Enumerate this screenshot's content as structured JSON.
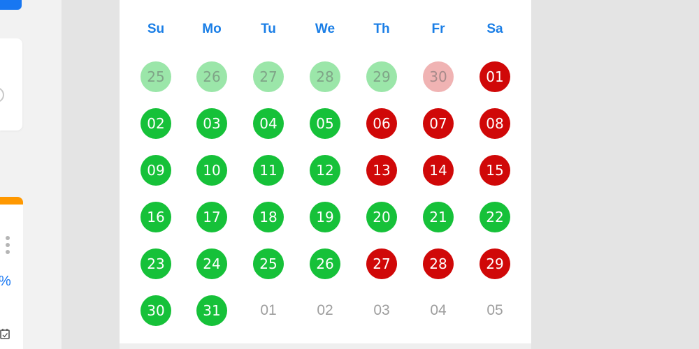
{
  "left_panel": {
    "percent_text": "%"
  },
  "calendar": {
    "weekdays": [
      "Su",
      "Mo",
      "Tu",
      "We",
      "Th",
      "Fr",
      "Sa"
    ],
    "weeks": [
      [
        {
          "label": "25",
          "status": "light-green"
        },
        {
          "label": "26",
          "status": "light-green"
        },
        {
          "label": "27",
          "status": "light-green"
        },
        {
          "label": "28",
          "status": "light-green"
        },
        {
          "label": "29",
          "status": "light-green"
        },
        {
          "label": "30",
          "status": "light-red"
        },
        {
          "label": "01",
          "status": "red"
        }
      ],
      [
        {
          "label": "02",
          "status": "green"
        },
        {
          "label": "03",
          "status": "green"
        },
        {
          "label": "04",
          "status": "green"
        },
        {
          "label": "05",
          "status": "green"
        },
        {
          "label": "06",
          "status": "red"
        },
        {
          "label": "07",
          "status": "red"
        },
        {
          "label": "08",
          "status": "red"
        }
      ],
      [
        {
          "label": "09",
          "status": "green"
        },
        {
          "label": "10",
          "status": "green"
        },
        {
          "label": "11",
          "status": "green"
        },
        {
          "label": "12",
          "status": "green"
        },
        {
          "label": "13",
          "status": "red"
        },
        {
          "label": "14",
          "status": "red"
        },
        {
          "label": "15",
          "status": "red"
        }
      ],
      [
        {
          "label": "16",
          "status": "green"
        },
        {
          "label": "17",
          "status": "green"
        },
        {
          "label": "18",
          "status": "green"
        },
        {
          "label": "19",
          "status": "green"
        },
        {
          "label": "20",
          "status": "green"
        },
        {
          "label": "21",
          "status": "green"
        },
        {
          "label": "22",
          "status": "green"
        }
      ],
      [
        {
          "label": "23",
          "status": "green"
        },
        {
          "label": "24",
          "status": "green"
        },
        {
          "label": "25",
          "status": "green"
        },
        {
          "label": "26",
          "status": "green"
        },
        {
          "label": "27",
          "status": "red"
        },
        {
          "label": "28",
          "status": "red"
        },
        {
          "label": "29",
          "status": "red"
        }
      ],
      [
        {
          "label": "30",
          "status": "green"
        },
        {
          "label": "31",
          "status": "green"
        },
        {
          "label": "01",
          "status": "next"
        },
        {
          "label": "02",
          "status": "next"
        },
        {
          "label": "03",
          "status": "next"
        },
        {
          "label": "04",
          "status": "next"
        },
        {
          "label": "05",
          "status": "next"
        }
      ]
    ]
  },
  "colors": {
    "available": "#16c139",
    "unavailable": "#d00808",
    "weekday_header": "#1a7ee6",
    "accent_orange": "#ff9800",
    "primary_blue": "#1877f2"
  },
  "icons": {
    "menu": "kebab-menu-icon",
    "calendar": "calendar-icon",
    "circle": "circle-icon"
  }
}
